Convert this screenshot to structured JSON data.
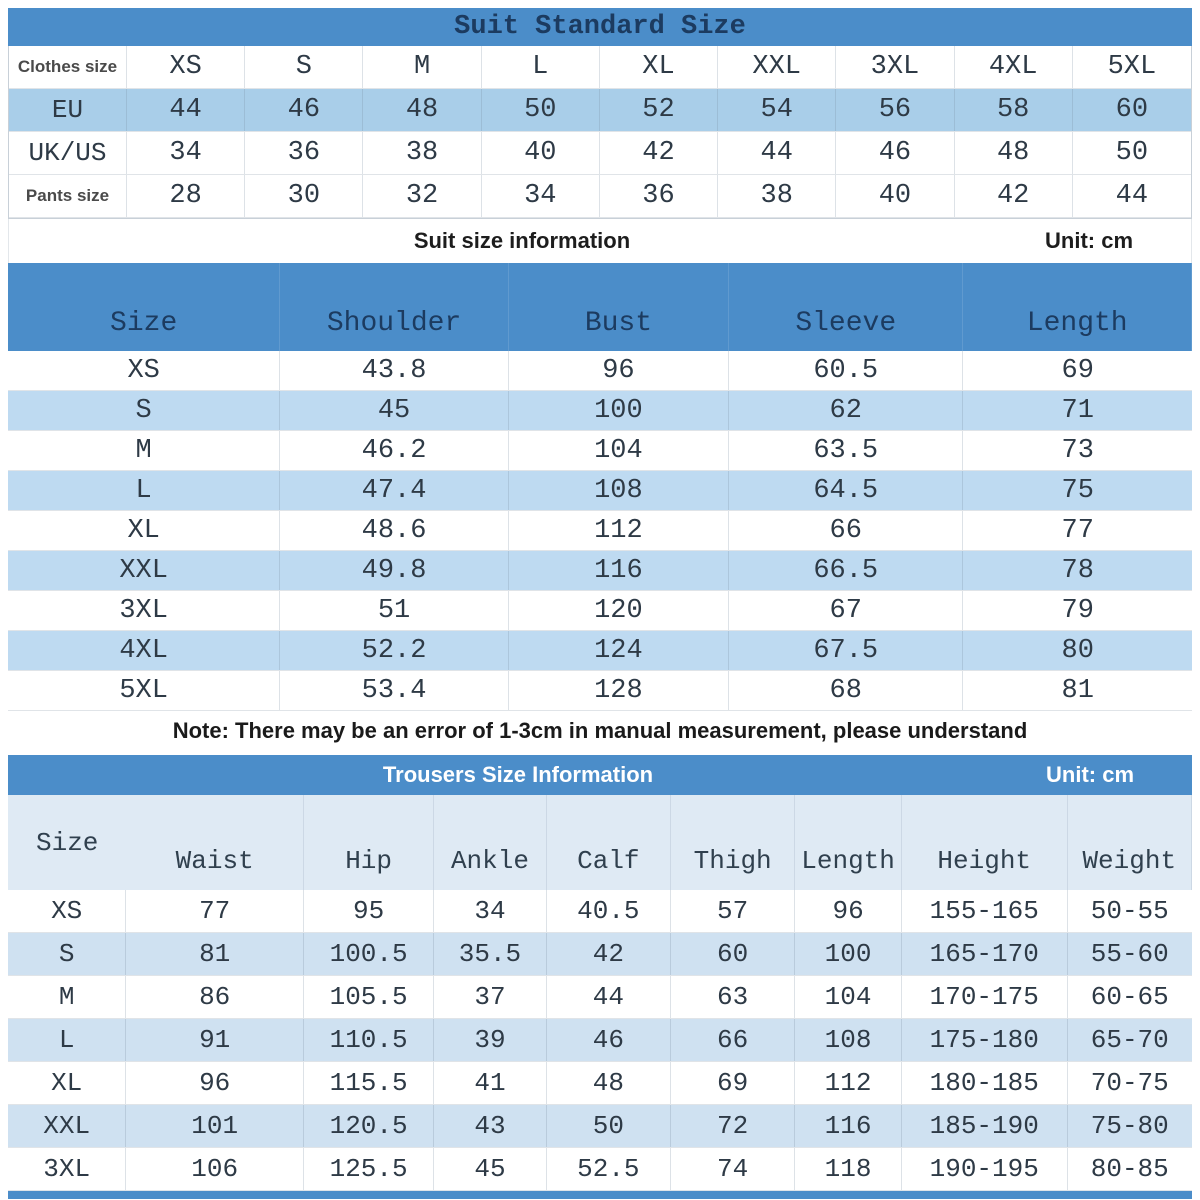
{
  "colors": {
    "band_blue": "#4b8dc9",
    "eu_row_blue": "#a9cee9",
    "suit_stripe_blue": "#bedaf1",
    "trousers_stripe_blue": "#cfe1f1",
    "trousers_header_blue": "#dfeaf4",
    "header_text_navy": "#1c3b60",
    "value_text": "#2e3a46"
  },
  "suit_standard": {
    "title": "Suit Standard Size",
    "rows": [
      {
        "label": "Clothes size",
        "values": [
          "XS",
          "S",
          "M",
          "L",
          "XL",
          "XXL",
          "3XL",
          "4XL",
          "5XL"
        ]
      },
      {
        "label": "EU",
        "values": [
          "44",
          "46",
          "48",
          "50",
          "52",
          "54",
          "56",
          "58",
          "60"
        ]
      },
      {
        "label": "UK/US",
        "values": [
          "34",
          "36",
          "38",
          "40",
          "42",
          "44",
          "46",
          "48",
          "50"
        ]
      },
      {
        "label": "Pants size",
        "values": [
          "28",
          "30",
          "32",
          "34",
          "36",
          "38",
          "40",
          "42",
          "44"
        ]
      }
    ]
  },
  "suit_info": {
    "caption": "Suit size information",
    "unit": "Unit: cm",
    "columns": [
      "Size",
      "Shoulder",
      "Bust",
      "Sleeve",
      "Length"
    ],
    "rows": [
      [
        "XS",
        "43.8",
        "96",
        "60.5",
        "69"
      ],
      [
        "S",
        "45",
        "100",
        "62",
        "71"
      ],
      [
        "M",
        "46.2",
        "104",
        "63.5",
        "73"
      ],
      [
        "L",
        "47.4",
        "108",
        "64.5",
        "75"
      ],
      [
        "XL",
        "48.6",
        "112",
        "66",
        "77"
      ],
      [
        "XXL",
        "49.8",
        "116",
        "66.5",
        "78"
      ],
      [
        "3XL",
        "51",
        "120",
        "67",
        "79"
      ],
      [
        "4XL",
        "52.2",
        "124",
        "67.5",
        "80"
      ],
      [
        "5XL",
        "53.4",
        "128",
        "68",
        "81"
      ]
    ],
    "note": "Note: There may be an error of 1-3cm in manual measurement, please understand"
  },
  "trousers": {
    "caption": "Trousers Size Information",
    "unit": "Unit: cm",
    "columns": [
      "Size",
      "Waist",
      "Hip",
      "Ankle",
      "Calf",
      "Thigh",
      "Length",
      "Height",
      "Weight"
    ],
    "rows": [
      [
        "XS",
        "77",
        "95",
        "34",
        "40.5",
        "57",
        "96",
        "155-165",
        "50-55"
      ],
      [
        "S",
        "81",
        "100.5",
        "35.5",
        "42",
        "60",
        "100",
        "165-170",
        "55-60"
      ],
      [
        "M",
        "86",
        "105.5",
        "37",
        "44",
        "63",
        "104",
        "170-175",
        "60-65"
      ],
      [
        "L",
        "91",
        "110.5",
        "39",
        "46",
        "66",
        "108",
        "175-180",
        "65-70"
      ],
      [
        "XL",
        "96",
        "115.5",
        "41",
        "48",
        "69",
        "112",
        "180-185",
        "70-75"
      ],
      [
        "XXL",
        "101",
        "120.5",
        "43",
        "50",
        "72",
        "116",
        "185-190",
        "75-80"
      ],
      [
        "3XL",
        "106",
        "125.5",
        "45",
        "52.5",
        "74",
        "118",
        "190-195",
        "80-85"
      ]
    ]
  }
}
